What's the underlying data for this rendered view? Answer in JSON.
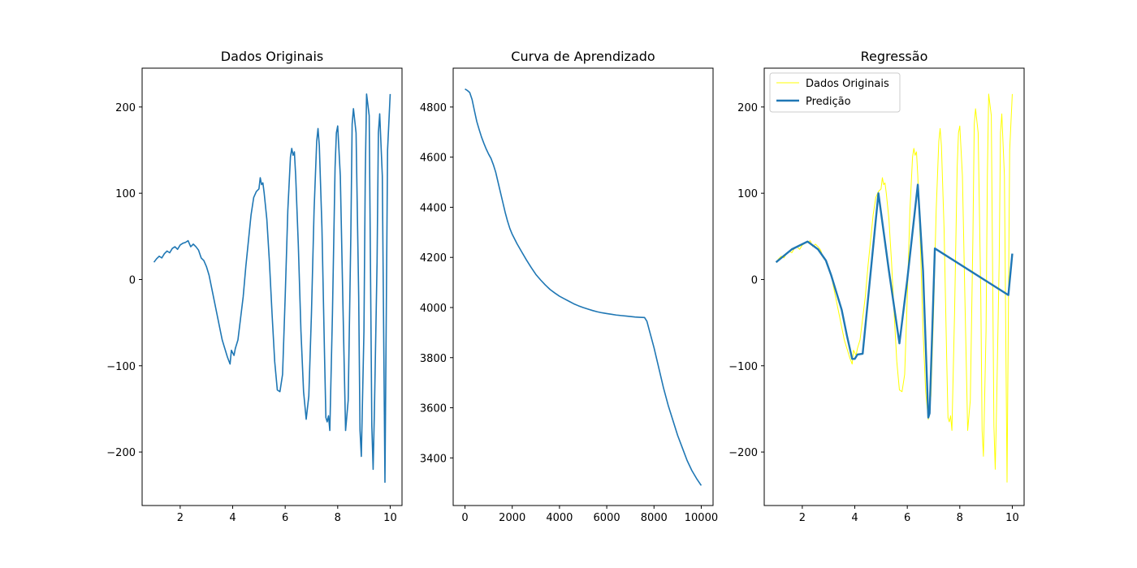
{
  "figure": {
    "background": "#ffffff"
  },
  "chart_data": [
    {
      "type": "line",
      "title": "Dados Originais",
      "xlabel": "",
      "ylabel": "",
      "xlim": [
        0.55,
        10.45
      ],
      "ylim": [
        -262,
        245
      ],
      "xticks": [
        2,
        4,
        6,
        8,
        10
      ],
      "yticks": [
        -200,
        -100,
        0,
        100,
        200
      ],
      "xtick_labels": [
        "2",
        "4",
        "6",
        "8",
        "10"
      ],
      "ytick_labels": [
        "−200",
        "−100",
        "0",
        "100",
        "200"
      ],
      "grid": false,
      "series": [
        {
          "color": "#1f77b4",
          "x": [
            1.0,
            1.1,
            1.2,
            1.3,
            1.4,
            1.5,
            1.6,
            1.7,
            1.8,
            1.9,
            2.0,
            2.1,
            2.2,
            2.3,
            2.4,
            2.5,
            2.6,
            2.7,
            2.8,
            2.9,
            3.0,
            3.1,
            3.2,
            3.3,
            3.4,
            3.5,
            3.6,
            3.7,
            3.8,
            3.9,
            3.95,
            4.0,
            4.05,
            4.1,
            4.2,
            4.3,
            4.4,
            4.5,
            4.6,
            4.7,
            4.8,
            4.9,
            5.0,
            5.05,
            5.1,
            5.15,
            5.2,
            5.3,
            5.4,
            5.5,
            5.6,
            5.7,
            5.8,
            5.9,
            6.0,
            6.1,
            6.2,
            6.25,
            6.3,
            6.35,
            6.4,
            6.5,
            6.6,
            6.7,
            6.8,
            6.9,
            7.0,
            7.1,
            7.2,
            7.25,
            7.3,
            7.4,
            7.5,
            7.55,
            7.6,
            7.65,
            7.7,
            7.8,
            7.9,
            7.95,
            8.0,
            8.1,
            8.2,
            8.3,
            8.4,
            8.5,
            8.55,
            8.6,
            8.7,
            8.8,
            8.85,
            8.9,
            9.0,
            9.05,
            9.1,
            9.2,
            9.3,
            9.35,
            9.4,
            9.5,
            9.55,
            9.6,
            9.7,
            9.8,
            9.9,
            10.0
          ],
          "y": [
            20,
            24,
            27,
            25,
            30,
            33,
            31,
            36,
            38,
            35,
            40,
            42,
            43,
            45,
            38,
            41,
            38,
            34,
            25,
            22,
            15,
            5,
            -10,
            -25,
            -40,
            -55,
            -70,
            -80,
            -90,
            -98,
            -82,
            -85,
            -88,
            -80,
            -70,
            -45,
            -20,
            15,
            45,
            75,
            95,
            102,
            105,
            118,
            110,
            112,
            100,
            70,
            20,
            -40,
            -95,
            -128,
            -130,
            -110,
            -20,
            80,
            142,
            152,
            144,
            148,
            120,
            40,
            -60,
            -130,
            -162,
            -135,
            -40,
            80,
            160,
            175,
            155,
            60,
            -90,
            -160,
            -165,
            -158,
            -175,
            -40,
            130,
            170,
            178,
            120,
            -30,
            -175,
            -140,
            50,
            180,
            198,
            170,
            -20,
            -175,
            -205,
            -60,
            120,
            215,
            190,
            -170,
            -220,
            -150,
            20,
            170,
            192,
            120,
            -235,
            150,
            215
          ]
        }
      ]
    },
    {
      "type": "line",
      "title": "Curva de Aprendizado",
      "xlabel": "",
      "ylabel": "",
      "xlim": [
        -500,
        10500
      ],
      "ylim": [
        3210,
        4955
      ],
      "xticks": [
        0,
        2000,
        4000,
        6000,
        8000,
        10000
      ],
      "yticks": [
        3400,
        3600,
        3800,
        4000,
        4200,
        4400,
        4600,
        4800
      ],
      "xtick_labels": [
        "0",
        "2000",
        "4000",
        "6000",
        "8000",
        "10000"
      ],
      "ytick_labels": [
        "3400",
        "3600",
        "3800",
        "4000",
        "4200",
        "4400",
        "4600",
        "4800"
      ],
      "grid": false,
      "series": [
        {
          "color": "#1f77b4",
          "x": [
            0,
            100,
            200,
            300,
            400,
            500,
            600,
            700,
            800,
            900,
            1000,
            1100,
            1200,
            1300,
            1400,
            1500,
            1600,
            1700,
            1800,
            1900,
            2000,
            2200,
            2400,
            2600,
            2800,
            3000,
            3200,
            3400,
            3600,
            3800,
            4000,
            4200,
            4400,
            4600,
            4800,
            5000,
            5200,
            5400,
            5600,
            5800,
            6000,
            6200,
            6400,
            6600,
            6800,
            7000,
            7200,
            7400,
            7600,
            7700,
            7800,
            7900,
            8000,
            8200,
            8400,
            8600,
            8800,
            9000,
            9200,
            9400,
            9600,
            9800,
            10000
          ],
          "y": [
            4872,
            4866,
            4858,
            4830,
            4785,
            4742,
            4710,
            4680,
            4655,
            4632,
            4612,
            4595,
            4570,
            4540,
            4500,
            4460,
            4420,
            4380,
            4345,
            4315,
            4292,
            4255,
            4222,
            4190,
            4160,
            4132,
            4110,
            4090,
            4072,
            4058,
            4045,
            4035,
            4025,
            4015,
            4007,
            4000,
            3994,
            3988,
            3983,
            3979,
            3976,
            3973,
            3970,
            3968,
            3966,
            3964,
            3962,
            3961,
            3960,
            3945,
            3910,
            3875,
            3840,
            3760,
            3680,
            3610,
            3550,
            3490,
            3440,
            3390,
            3350,
            3318,
            3290
          ]
        }
      ]
    },
    {
      "type": "line",
      "title": "Regressão",
      "xlabel": "",
      "ylabel": "",
      "xlim": [
        0.55,
        10.45
      ],
      "ylim": [
        -262,
        245
      ],
      "xticks": [
        2,
        4,
        6,
        8,
        10
      ],
      "yticks": [
        -200,
        -100,
        0,
        100,
        200
      ],
      "xtick_labels": [
        "2",
        "4",
        "6",
        "8",
        "10"
      ],
      "ytick_labels": [
        "−200",
        "−100",
        "0",
        "100",
        "200"
      ],
      "grid": false,
      "legend": {
        "placement": "top-left",
        "entries": [
          "Dados Originais",
          "Predição"
        ]
      },
      "series": [
        {
          "name": "Dados Originais",
          "color": "#ffff00",
          "x": [
            1.0,
            1.1,
            1.2,
            1.3,
            1.4,
            1.5,
            1.6,
            1.7,
            1.8,
            1.9,
            2.0,
            2.1,
            2.2,
            2.3,
            2.4,
            2.5,
            2.6,
            2.7,
            2.8,
            2.9,
            3.0,
            3.1,
            3.2,
            3.3,
            3.4,
            3.5,
            3.6,
            3.7,
            3.8,
            3.9,
            3.95,
            4.0,
            4.05,
            4.1,
            4.2,
            4.3,
            4.4,
            4.5,
            4.6,
            4.7,
            4.8,
            4.9,
            5.0,
            5.05,
            5.1,
            5.15,
            5.2,
            5.3,
            5.4,
            5.5,
            5.6,
            5.7,
            5.8,
            5.9,
            6.0,
            6.1,
            6.2,
            6.25,
            6.3,
            6.35,
            6.4,
            6.5,
            6.6,
            6.7,
            6.8,
            6.9,
            7.0,
            7.1,
            7.2,
            7.25,
            7.3,
            7.4,
            7.5,
            7.55,
            7.6,
            7.65,
            7.7,
            7.8,
            7.9,
            7.95,
            8.0,
            8.1,
            8.2,
            8.3,
            8.4,
            8.5,
            8.55,
            8.6,
            8.7,
            8.8,
            8.85,
            8.9,
            9.0,
            9.05,
            9.1,
            9.2,
            9.3,
            9.35,
            9.4,
            9.5,
            9.55,
            9.6,
            9.7,
            9.8,
            9.9,
            10.0
          ],
          "y": [
            20,
            24,
            27,
            25,
            30,
            33,
            31,
            36,
            38,
            35,
            40,
            42,
            43,
            45,
            38,
            41,
            38,
            34,
            25,
            22,
            15,
            5,
            -10,
            -25,
            -40,
            -55,
            -70,
            -80,
            -90,
            -98,
            -82,
            -85,
            -88,
            -80,
            -70,
            -45,
            -20,
            15,
            45,
            75,
            95,
            102,
            105,
            118,
            110,
            112,
            100,
            70,
            20,
            -40,
            -95,
            -128,
            -130,
            -110,
            -20,
            80,
            142,
            152,
            144,
            148,
            120,
            40,
            -60,
            -130,
            -162,
            -135,
            -40,
            80,
            160,
            175,
            155,
            60,
            -90,
            -160,
            -165,
            -158,
            -175,
            -40,
            130,
            170,
            178,
            120,
            -30,
            -175,
            -140,
            50,
            180,
            198,
            170,
            -20,
            -175,
            -205,
            -60,
            120,
            215,
            190,
            -170,
            -220,
            -150,
            20,
            170,
            192,
            120,
            -235,
            150,
            215
          ]
        },
        {
          "name": "Predição",
          "color": "#1f77b4",
          "x": [
            1.0,
            1.6,
            2.2,
            2.6,
            2.9,
            3.1,
            3.5,
            3.7,
            3.9,
            4.0,
            4.1,
            4.3,
            4.9,
            5.3,
            5.7,
            6.0,
            6.4,
            6.6,
            6.8,
            6.85,
            7.05,
            9.85,
            10.0
          ],
          "y": [
            20,
            35,
            44,
            35,
            22,
            5,
            -35,
            -65,
            -92,
            -92,
            -87,
            -86,
            100,
            10,
            -74,
            0,
            110,
            10,
            -160,
            -155,
            36,
            -18,
            30
          ]
        }
      ]
    }
  ]
}
